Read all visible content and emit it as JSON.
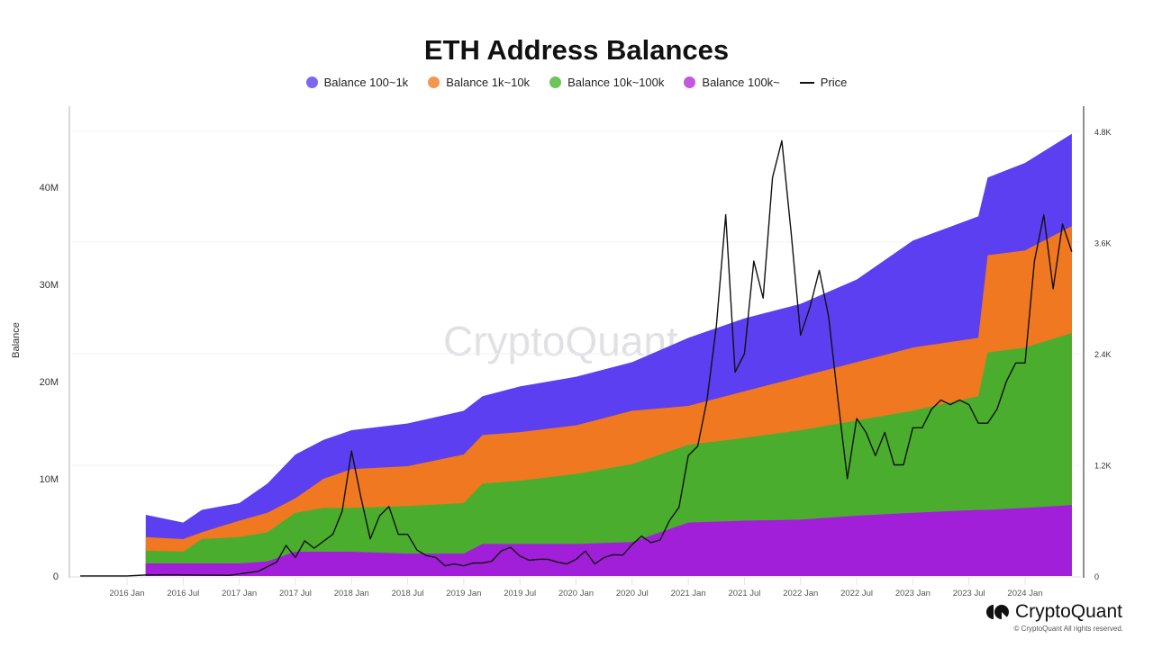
{
  "chart_data": {
    "type": "area",
    "title": "ETH Address Balances",
    "ylabel": "Balance",
    "ylabel_right": "",
    "ylim": [
      0,
      46000000
    ],
    "ylim_right": [
      0,
      4800
    ],
    "y_ticks": [
      "0",
      "10M",
      "20M",
      "30M",
      "40M"
    ],
    "y_ticks_right": [
      "0",
      "1.2K",
      "2.4K",
      "3.6K",
      "4.8K"
    ],
    "x_ticks": [
      "2016 Jan",
      "2016 Jul",
      "2017 Jan",
      "2017 Jul",
      "2018 Jan",
      "2018 Jul",
      "2019 Jan",
      "2019 Jul",
      "2020 Jan",
      "2020 Jul",
      "2021 Jan",
      "2021 Jul",
      "2022 Jan",
      "2022 Jul",
      "2023 Jan",
      "2023 Jul",
      "2024 Jan"
    ],
    "legend_position": "top",
    "grid": true,
    "stacked": true,
    "balance_dates": [
      "2016-03",
      "2016-07",
      "2016-09",
      "2017-01",
      "2017-04",
      "2017-07",
      "2017-10",
      "2018-01",
      "2018-07",
      "2019-01",
      "2019-03",
      "2019-07",
      "2020-01",
      "2020-07",
      "2021-01",
      "2021-07",
      "2022-01",
      "2022-07",
      "2023-01",
      "2023-08",
      "2023-09",
      "2024-01",
      "2024-06"
    ],
    "series": [
      {
        "name": "Balance 100k~",
        "color": "#a11fd9",
        "axis": "left",
        "values_millions": [
          1.3,
          1.3,
          1.3,
          1.3,
          1.5,
          2.5,
          2.5,
          2.5,
          2.3,
          2.3,
          3.3,
          3.3,
          3.3,
          3.5,
          5.5,
          5.7,
          5.8,
          6.2,
          6.5,
          6.8,
          6.8,
          7.0,
          7.3
        ]
      },
      {
        "name": "Balance 10k~100k",
        "color": "#4aad2d",
        "axis": "left",
        "values_millions": [
          1.3,
          1.2,
          2.5,
          2.7,
          3.0,
          4.0,
          4.5,
          4.5,
          4.9,
          5.2,
          6.2,
          6.5,
          7.2,
          8.0,
          8.0,
          8.5,
          9.2,
          9.8,
          10.5,
          11.7,
          16.2,
          16.5,
          17.7
        ]
      },
      {
        "name": "Balance 1k~10k",
        "color": "#f07820",
        "axis": "left",
        "values_millions": [
          1.4,
          1.3,
          0.7,
          1.7,
          2.0,
          1.5,
          3.0,
          4.0,
          4.1,
          5.0,
          5.0,
          5.0,
          5.0,
          5.5,
          4.0,
          4.8,
          5.5,
          6.0,
          6.5,
          6.0,
          10.0,
          10.0,
          11.0
        ]
      },
      {
        "name": "Balance 100~1k",
        "color": "#5b3ff0",
        "axis": "left",
        "values_millions": [
          2.3,
          1.7,
          2.3,
          1.8,
          3.0,
          4.5,
          4.0,
          4.0,
          4.4,
          4.5,
          4.0,
          4.7,
          5.0,
          5.0,
          7.0,
          7.5,
          7.5,
          8.5,
          11.0,
          12.5,
          8.0,
          9.0,
          9.5
        ]
      },
      {
        "name": "Price",
        "color": "#111111",
        "axis": "right",
        "dates": [
          "2015-08",
          "2015-11",
          "2016-01",
          "2016-03",
          "2016-06",
          "2016-07",
          "2016-12",
          "2017-03",
          "2017-05",
          "2017-06",
          "2017-07",
          "2017-08",
          "2017-09",
          "2017-11",
          "2017-12",
          "2018-01",
          "2018-02",
          "2018-03",
          "2018-04",
          "2018-05",
          "2018-06",
          "2018-07",
          "2018-08",
          "2018-09",
          "2018-10",
          "2018-11",
          "2018-12",
          "2019-01",
          "2019-02",
          "2019-03",
          "2019-04",
          "2019-05",
          "2019-06",
          "2019-07",
          "2019-08",
          "2019-09",
          "2019-10",
          "2019-11",
          "2019-12",
          "2020-01",
          "2020-02",
          "2020-03",
          "2020-04",
          "2020-05",
          "2020-06",
          "2020-07",
          "2020-08",
          "2020-09",
          "2020-10",
          "2020-11",
          "2020-12",
          "2021-01",
          "2021-02",
          "2021-03",
          "2021-04",
          "2021-05",
          "2021-06",
          "2021-07",
          "2021-08",
          "2021-09",
          "2021-10",
          "2021-11",
          "2021-12",
          "2022-01",
          "2022-02",
          "2022-03",
          "2022-04",
          "2022-05",
          "2022-06",
          "2022-07",
          "2022-08",
          "2022-09",
          "2022-10",
          "2022-11",
          "2022-12",
          "2023-01",
          "2023-02",
          "2023-03",
          "2023-04",
          "2023-05",
          "2023-06",
          "2023-07",
          "2023-08",
          "2023-09",
          "2023-10",
          "2023-11",
          "2023-12",
          "2024-01",
          "2024-02",
          "2024-03",
          "2024-04",
          "2024-05",
          "2024-06"
        ],
        "values": [
          1,
          1,
          1,
          11,
          14,
          12,
          8,
          50,
          150,
          330,
          200,
          380,
          300,
          450,
          700,
          1350,
          850,
          400,
          650,
          750,
          450,
          450,
          280,
          220,
          200,
          110,
          130,
          110,
          140,
          140,
          160,
          270,
          310,
          215,
          170,
          180,
          180,
          150,
          130,
          180,
          270,
          130,
          200,
          230,
          225,
          340,
          430,
          360,
          390,
          600,
          740,
          1300,
          1400,
          1900,
          2700,
          3900,
          2200,
          2400,
          3400,
          3000,
          4300,
          4700,
          3700,
          2600,
          2900,
          3300,
          2800,
          1900,
          1050,
          1700,
          1550,
          1300,
          1550,
          1200,
          1200,
          1600,
          1600,
          1800,
          1900,
          1850,
          1900,
          1850,
          1650,
          1650,
          1800,
          2100,
          2300,
          2300,
          3400,
          3900,
          3100,
          3800,
          3500
        ]
      }
    ]
  },
  "legend": {
    "items": [
      "Balance 100~1k",
      "Balance 1k~10k",
      "Balance 10k~100k",
      "Balance 100k~",
      "Price"
    ],
    "colors": [
      "#7b68ee",
      "#f39650",
      "#6cc45a",
      "#c257e0",
      "#111111"
    ]
  },
  "watermark": "CryptoQuant",
  "footer": {
    "brand": "CryptoQuant",
    "copyright": "© CryptoQuant All rights reserved."
  }
}
